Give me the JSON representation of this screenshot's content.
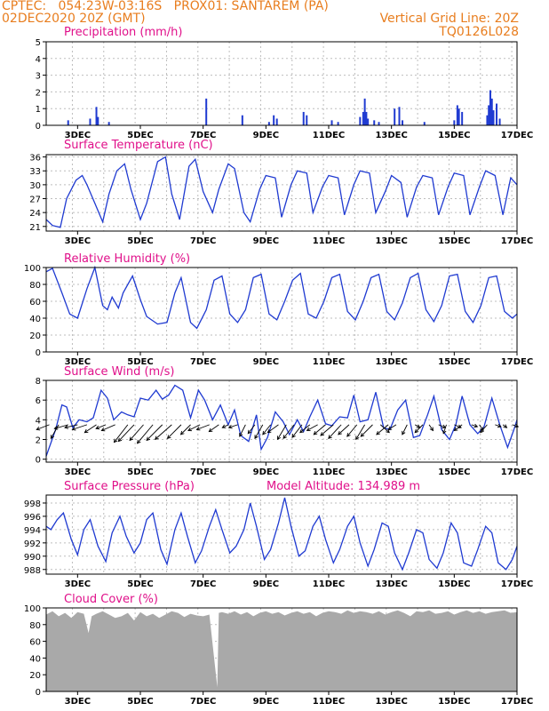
{
  "header": {
    "line1_left": "CPTEC:   054:23W-03:16S   PROX01: SANTAREM (PA)",
    "line2_left": "02DEC2020 20Z (GMT)",
    "line2_right": "Vertical Grid Line: 20Z",
    "line3_right": "TQ0126L028"
  },
  "colors": {
    "header": "#e87d1e",
    "panel_title": "#e0108a",
    "series": "#1f3ad1",
    "cloud": "#a9a9a9",
    "wind_arrow": "#000000",
    "grid": "#bdbdbd"
  },
  "chart_data": [
    {
      "type": "bar",
      "title": "Precipitation (mm/h)",
      "x_tick_labels": [
        "3DEC",
        "5DEC",
        "7DEC",
        "9DEC",
        "11DEC",
        "13DEC",
        "15DEC",
        "17DEC"
      ],
      "y_ticks": [
        0,
        1,
        2,
        3,
        4,
        5
      ],
      "ylim": [
        0,
        5
      ],
      "x": [
        2.7,
        3.4,
        3.6,
        3.65,
        4.0,
        8.25,
        7.1,
        9.1,
        9.25,
        9.35,
        10.2,
        10.3,
        11.1,
        11.3,
        12.0,
        12.1,
        12.15,
        12.2,
        12.25,
        12.45,
        12.6,
        13.1,
        13.25,
        13.35,
        14.05,
        15.0,
        15.1,
        15.15,
        15.25,
        16.05,
        16.1,
        16.15,
        16.2,
        16.25,
        16.35,
        16.45
      ],
      "values": [
        0.3,
        0.4,
        1.1,
        0.5,
        0.2,
        0.6,
        1.6,
        0.2,
        0.6,
        0.4,
        0.8,
        0.6,
        0.3,
        0.2,
        0.5,
        0.8,
        1.6,
        0.8,
        0.4,
        0.3,
        0.2,
        1.0,
        1.1,
        0.3,
        0.2,
        0.3,
        1.2,
        1.0,
        0.8,
        0.6,
        1.2,
        2.1,
        1.6,
        0.9,
        1.3,
        0.4
      ],
      "grid": true
    },
    {
      "type": "line",
      "title": "Surface Temperature (nC)",
      "x_tick_labels": [
        "3DEC",
        "5DEC",
        "7DEC",
        "9DEC",
        "11DEC",
        "13DEC",
        "15DEC",
        "17DEC"
      ],
      "y_ticks": [
        21,
        24,
        27,
        30,
        33,
        36
      ],
      "ylim": [
        20,
        36.5
      ],
      "x": [
        2.0,
        2.2,
        2.45,
        2.65,
        2.95,
        3.15,
        3.3,
        3.55,
        3.8,
        4.0,
        4.25,
        4.5,
        4.7,
        5.0,
        5.2,
        5.55,
        5.8,
        6.0,
        6.25,
        6.55,
        6.75,
        7.0,
        7.3,
        7.5,
        7.8,
        8.0,
        8.3,
        8.5,
        8.8,
        9.0,
        9.3,
        9.5,
        9.8,
        10.0,
        10.3,
        10.5,
        10.8,
        11.0,
        11.3,
        11.5,
        11.8,
        12.0,
        12.3,
        12.5,
        12.8,
        13.0,
        13.3,
        13.5,
        13.8,
        14.0,
        14.3,
        14.5,
        14.8,
        15.0,
        15.3,
        15.5,
        15.8,
        16.0,
        16.3,
        16.55,
        16.8,
        17.0
      ],
      "values": [
        22.5,
        21.2,
        20.8,
        27.0,
        31.0,
        32.0,
        30.0,
        26.0,
        22.0,
        28.0,
        33.0,
        34.5,
        29.0,
        22.5,
        26.0,
        35.0,
        36.0,
        28.0,
        22.5,
        34.0,
        35.5,
        28.5,
        24.0,
        29.0,
        34.5,
        33.5,
        24.0,
        22.0,
        29.0,
        32.0,
        31.5,
        23.0,
        30.0,
        33.0,
        32.5,
        24.0,
        29.5,
        32.0,
        31.5,
        23.5,
        30.0,
        33.0,
        32.5,
        24.0,
        28.5,
        32.0,
        30.5,
        23.0,
        29.5,
        32.0,
        31.5,
        23.5,
        29.5,
        32.5,
        32.0,
        23.5,
        29.5,
        33.0,
        32.0,
        23.5,
        31.5,
        30.0
      ],
      "grid": true
    },
    {
      "type": "line",
      "title": "Relative Humidity (%)",
      "x_tick_labels": [
        "3DEC",
        "5DEC",
        "7DEC",
        "9DEC",
        "11DEC",
        "13DEC",
        "15DEC",
        "17DEC"
      ],
      "y_ticks": [
        0,
        20,
        40,
        60,
        80,
        100
      ],
      "ylim": [
        0,
        100
      ],
      "x": [
        2.0,
        2.2,
        2.5,
        2.75,
        3.0,
        3.3,
        3.55,
        3.8,
        3.95,
        4.1,
        4.3,
        4.45,
        4.75,
        5.0,
        5.2,
        5.55,
        5.85,
        6.1,
        6.3,
        6.6,
        6.8,
        7.1,
        7.35,
        7.6,
        7.85,
        8.1,
        8.35,
        8.6,
        8.85,
        9.1,
        9.35,
        9.6,
        9.85,
        10.1,
        10.35,
        10.6,
        10.85,
        11.1,
        11.35,
        11.6,
        11.85,
        12.1,
        12.35,
        12.6,
        12.85,
        13.1,
        13.35,
        13.6,
        13.85,
        14.1,
        14.35,
        14.6,
        14.85,
        15.1,
        15.35,
        15.6,
        15.85,
        16.1,
        16.35,
        16.6,
        16.85,
        17.0
      ],
      "values": [
        95,
        99,
        70,
        45,
        40,
        75,
        100,
        55,
        50,
        65,
        52,
        70,
        90,
        62,
        42,
        33,
        35,
        70,
        88,
        35,
        28,
        50,
        85,
        90,
        45,
        35,
        50,
        88,
        92,
        45,
        38,
        60,
        85,
        93,
        45,
        40,
        60,
        88,
        92,
        48,
        38,
        60,
        88,
        92,
        48,
        38,
        58,
        88,
        93,
        50,
        36,
        55,
        90,
        92,
        48,
        35,
        55,
        88,
        90,
        48,
        40,
        45
      ],
      "grid": true
    },
    {
      "type": "line",
      "title": "Surface Wind (m/s)",
      "x_tick_labels": [
        "3DEC",
        "5DEC",
        "7DEC",
        "9DEC",
        "11DEC",
        "13DEC",
        "15DEC",
        "17DEC"
      ],
      "y_ticks": [
        0,
        2,
        4,
        6,
        8
      ],
      "ylim": [
        -0.3,
        8
      ],
      "x": [
        2.0,
        2.1,
        2.3,
        2.5,
        2.65,
        2.85,
        3.05,
        3.3,
        3.5,
        3.75,
        3.95,
        4.15,
        4.4,
        4.6,
        4.8,
        5.0,
        5.25,
        5.5,
        5.7,
        5.9,
        6.1,
        6.35,
        6.6,
        6.85,
        7.05,
        7.3,
        7.55,
        7.8,
        8.0,
        8.2,
        8.45,
        8.7,
        8.85,
        9.05,
        9.3,
        9.55,
        9.75,
        10.0,
        10.2,
        10.4,
        10.65,
        10.9,
        11.1,
        11.35,
        11.6,
        11.8,
        12.0,
        12.25,
        12.5,
        12.75,
        12.95,
        13.2,
        13.45,
        13.7,
        13.9,
        14.15,
        14.35,
        14.6,
        14.85,
        15.05,
        15.25,
        15.5,
        15.75,
        15.95,
        16.2,
        16.45,
        16.7,
        16.9,
        17.0
      ],
      "values": [
        0.3,
        1.2,
        3.0,
        5.5,
        5.3,
        3.2,
        4.0,
        3.8,
        4.2,
        7.0,
        6.2,
        4.0,
        4.8,
        4.5,
        4.3,
        6.2,
        6.0,
        7.0,
        6.1,
        6.5,
        7.5,
        7.0,
        4.2,
        7.0,
        6.0,
        4.0,
        5.5,
        3.5,
        5.0,
        2.4,
        1.8,
        4.5,
        1.0,
        2.2,
        4.8,
        3.8,
        2.5,
        4.0,
        2.8,
        4.3,
        6.0,
        3.6,
        3.4,
        4.3,
        4.2,
        6.5,
        3.8,
        4.0,
        6.8,
        3.2,
        3.0,
        5.0,
        6.0,
        2.2,
        2.4,
        4.5,
        6.4,
        3.0,
        2.0,
        3.5,
        6.4,
        3.5,
        2.6,
        3.3,
        6.2,
        3.5,
        1.2,
        3.0,
        4.0
      ],
      "wind_vectors": [
        {
          "day": 2.1,
          "u": 1.3,
          "v": 0.5
        },
        {
          "day": 2.4,
          "u": 0.8,
          "v": 1.4
        },
        {
          "day": 2.7,
          "u": 1.4,
          "v": 0.4
        },
        {
          "day": 3.0,
          "u": 1.3,
          "v": 0.3
        },
        {
          "day": 3.3,
          "u": 1.5,
          "v": 0.5
        },
        {
          "day": 3.6,
          "u": 1.2,
          "v": 0.8
        },
        {
          "day": 3.9,
          "u": 1.0,
          "v": 0.4
        },
        {
          "day": 4.2,
          "u": 1.4,
          "v": 0.6
        },
        {
          "day": 4.6,
          "u": 1.4,
          "v": 1.8
        },
        {
          "day": 4.8,
          "u": 1.6,
          "v": 1.7
        },
        {
          "day": 5.1,
          "u": 1.4,
          "v": 1.6
        },
        {
          "day": 5.4,
          "u": 1.6,
          "v": 1.9
        },
        {
          "day": 5.7,
          "u": 1.6,
          "v": 1.6
        },
        {
          "day": 6.0,
          "u": 1.7,
          "v": 1.5
        },
        {
          "day": 6.3,
          "u": 1.4,
          "v": 1.4
        },
        {
          "day": 6.6,
          "u": 1.0,
          "v": 1.0
        },
        {
          "day": 6.9,
          "u": 1.2,
          "v": 0.6
        },
        {
          "day": 7.2,
          "u": 1.3,
          "v": 0.5
        },
        {
          "day": 7.5,
          "u": 1.0,
          "v": 0.7
        },
        {
          "day": 7.8,
          "u": 0.6,
          "v": 0.3
        },
        {
          "day": 8.1,
          "u": 0.9,
          "v": 0.3
        },
        {
          "day": 8.35,
          "u": 0.6,
          "v": 1.2
        },
        {
          "day": 8.65,
          "u": 0.7,
          "v": 0.9
        },
        {
          "day": 8.9,
          "u": 0.8,
          "v": 1.4
        },
        {
          "day": 9.15,
          "u": 0.8,
          "v": 1.0
        },
        {
          "day": 9.4,
          "u": 1.1,
          "v": 0.8
        },
        {
          "day": 9.65,
          "u": 0.9,
          "v": 1.5
        },
        {
          "day": 9.9,
          "u": 1.1,
          "v": 1.4
        },
        {
          "day": 10.15,
          "u": 1.0,
          "v": 1.3
        },
        {
          "day": 10.4,
          "u": 1.0,
          "v": 0.8
        },
        {
          "day": 10.65,
          "u": 1.1,
          "v": 0.6
        },
        {
          "day": 10.9,
          "u": 1.2,
          "v": 1.0
        },
        {
          "day": 11.15,
          "u": 1.3,
          "v": 1.1
        },
        {
          "day": 11.4,
          "u": 1.3,
          "v": 1.4
        },
        {
          "day": 11.65,
          "u": 1.1,
          "v": 1.0
        },
        {
          "day": 11.9,
          "u": 1.0,
          "v": 1.2
        },
        {
          "day": 12.15,
          "u": 0.9,
          "v": 1.5
        },
        {
          "day": 12.4,
          "u": 1.2,
          "v": 1.2
        },
        {
          "day": 12.65,
          "u": -0.9,
          "v": 0.8
        },
        {
          "day": 12.9,
          "u": 1.2,
          "v": 1.0
        },
        {
          "day": 13.15,
          "u": 0.8,
          "v": 0.5
        },
        {
          "day": 13.5,
          "u": 0.5,
          "v": 1.0
        },
        {
          "day": 13.75,
          "u": -0.5,
          "v": 0.3
        },
        {
          "day": 14.0,
          "u": 0.8,
          "v": 0.8
        },
        {
          "day": 14.2,
          "u": -0.4,
          "v": 0.6
        },
        {
          "day": 14.5,
          "u": -0.7,
          "v": 0.3
        },
        {
          "day": 14.75,
          "u": 0.3,
          "v": 0.9
        },
        {
          "day": 15.0,
          "u": -0.7,
          "v": 0.3
        },
        {
          "day": 15.25,
          "u": 0.8,
          "v": 0.6
        },
        {
          "day": 15.55,
          "u": -0.6,
          "v": 0.2
        },
        {
          "day": 15.8,
          "u": -0.4,
          "v": 0.6
        },
        {
          "day": 16.05,
          "u": 0.7,
          "v": 0.8
        },
        {
          "day": 16.3,
          "u": -0.6,
          "v": 0.2
        },
        {
          "day": 16.55,
          "u": -0.4,
          "v": 0.3
        },
        {
          "day": 16.85,
          "u": -0.6,
          "v": 0.2
        }
      ],
      "grid": true
    },
    {
      "type": "line",
      "title": "Surface Pressure (hPa)",
      "subtitle": "Model Altitude: 134.989  m",
      "x_tick_labels": [
        "3DEC",
        "5DEC",
        "7DEC",
        "9DEC",
        "11DEC",
        "13DEC",
        "15DEC",
        "17DEC"
      ],
      "y_ticks": [
        988,
        990,
        992,
        994,
        996,
        998
      ],
      "ylim": [
        987.3,
        999.2
      ],
      "x": [
        2.0,
        2.15,
        2.35,
        2.55,
        2.8,
        3.0,
        3.2,
        3.4,
        3.65,
        3.9,
        4.1,
        4.35,
        4.55,
        4.8,
        5.0,
        5.2,
        5.4,
        5.65,
        5.85,
        6.1,
        6.3,
        6.5,
        6.75,
        6.95,
        7.2,
        7.4,
        7.6,
        7.85,
        8.05,
        8.3,
        8.5,
        8.7,
        8.95,
        9.15,
        9.4,
        9.6,
        9.8,
        10.05,
        10.25,
        10.5,
        10.7,
        10.9,
        11.15,
        11.35,
        11.6,
        11.8,
        12.0,
        12.25,
        12.45,
        12.7,
        12.9,
        13.1,
        13.35,
        13.55,
        13.8,
        14.0,
        14.2,
        14.45,
        14.65,
        14.9,
        15.1,
        15.3,
        15.55,
        15.75,
        16.0,
        16.2,
        16.4,
        16.65,
        16.85,
        17.0
      ],
      "values": [
        994.5,
        994.0,
        995.5,
        996.5,
        992.5,
        990.2,
        994.0,
        995.5,
        991.5,
        989.2,
        993.5,
        996.0,
        993.0,
        990.5,
        992.0,
        995.5,
        996.5,
        991.0,
        988.8,
        994.0,
        996.5,
        993.0,
        989.0,
        990.8,
        994.5,
        997.0,
        994.0,
        990.5,
        991.5,
        994.0,
        998.0,
        994.5,
        989.5,
        991.0,
        995.0,
        998.8,
        994.5,
        990.0,
        990.8,
        994.5,
        996.0,
        992.5,
        989.0,
        991.0,
        994.5,
        996.0,
        992.0,
        988.5,
        991.0,
        995.0,
        994.5,
        990.5,
        988.0,
        990.5,
        994.0,
        993.5,
        989.5,
        988.2,
        990.5,
        995.0,
        993.5,
        989.0,
        988.5,
        991.0,
        994.5,
        993.5,
        989.0,
        988.0,
        989.5,
        991.5
      ],
      "grid": true
    },
    {
      "type": "area",
      "title": "Cloud Cover (%)",
      "x_tick_labels": [
        "3DEC",
        "5DEC",
        "7DEC",
        "9DEC",
        "11DEC",
        "13DEC",
        "15DEC",
        "17DEC"
      ],
      "y_ticks": [
        0,
        20,
        40,
        60,
        80,
        100
      ],
      "ylim": [
        0,
        100
      ],
      "x": [
        2.0,
        2.2,
        2.4,
        2.6,
        2.8,
        3.0,
        3.2,
        3.35,
        3.45,
        3.6,
        3.8,
        4.0,
        4.2,
        4.4,
        4.6,
        4.8,
        5.0,
        5.2,
        5.4,
        5.6,
        5.8,
        6.0,
        6.2,
        6.4,
        6.6,
        6.8,
        7.0,
        7.2,
        7.45,
        7.5,
        7.6,
        7.8,
        8.0,
        8.2,
        8.4,
        8.6,
        8.8,
        9.0,
        9.2,
        9.4,
        9.6,
        9.8,
        10.0,
        10.2,
        10.4,
        10.6,
        10.8,
        11.0,
        11.2,
        11.4,
        11.6,
        11.8,
        12.0,
        12.2,
        12.4,
        12.6,
        12.8,
        13.0,
        13.2,
        13.4,
        13.6,
        13.8,
        14.0,
        14.2,
        14.4,
        14.6,
        14.8,
        15.0,
        15.2,
        15.4,
        15.6,
        15.8,
        16.0,
        16.2,
        16.4,
        16.6,
        16.8,
        17.0
      ],
      "values": [
        92,
        96,
        90,
        94,
        88,
        95,
        93,
        70,
        90,
        93,
        96,
        92,
        88,
        90,
        94,
        85,
        95,
        90,
        93,
        88,
        92,
        96,
        94,
        89,
        93,
        91,
        90,
        92,
        5,
        94,
        95,
        93,
        96,
        92,
        95,
        90,
        94,
        96,
        93,
        95,
        91,
        94,
        96,
        93,
        95,
        90,
        94,
        96,
        95,
        93,
        97,
        94,
        96,
        95,
        93,
        96,
        92,
        95,
        97,
        94,
        90,
        96,
        95,
        97,
        93,
        94,
        96,
        92,
        95,
        97,
        94,
        96,
        93,
        95,
        96,
        97,
        94,
        95
      ],
      "grid": true
    }
  ]
}
